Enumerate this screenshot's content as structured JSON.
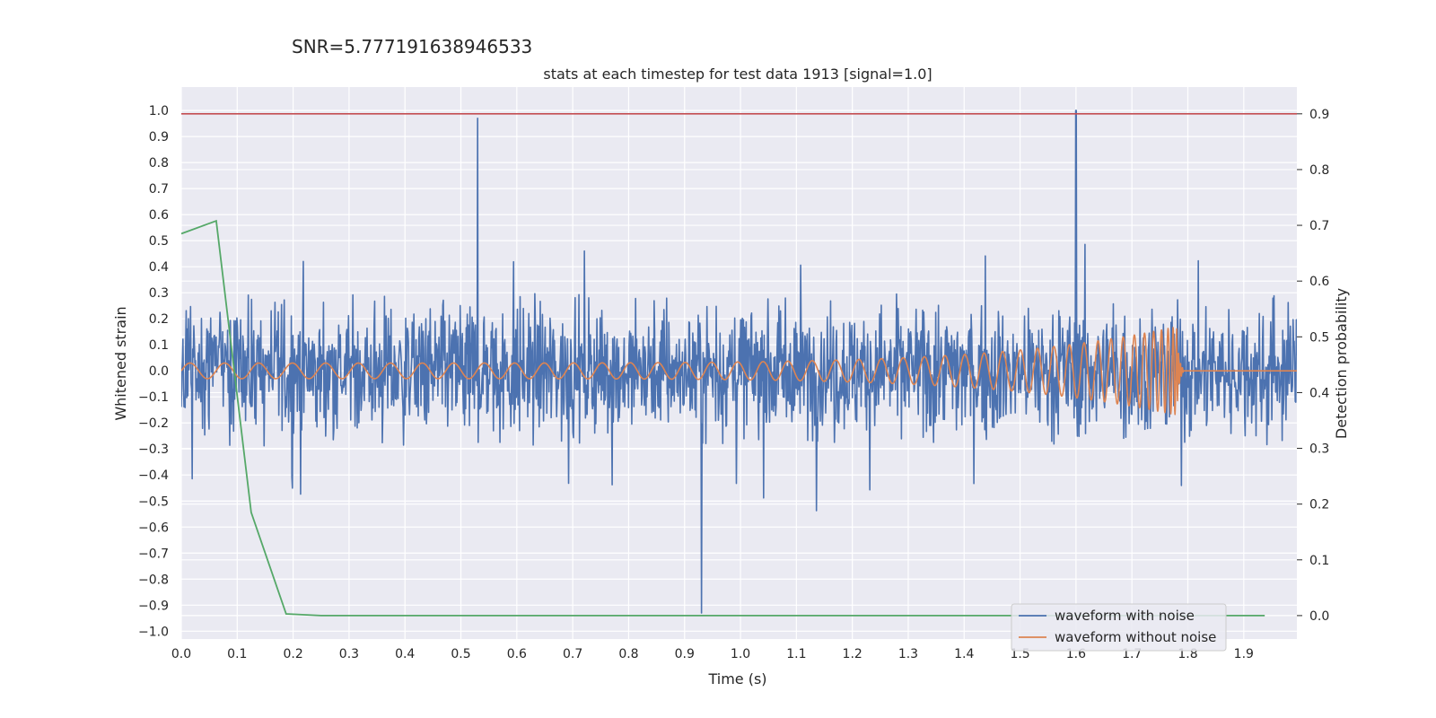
{
  "suptitle": "SNR=5.777191638946533",
  "chart_data": {
    "type": "line",
    "title": "stats at each timestep for test data 1913 [signal=1.0]",
    "xlabel": "Time (s)",
    "ylabel": "Whitened strain",
    "y2label": "Detection probability",
    "xlim": [
      0.0,
      1.995
    ],
    "ylim": [
      -1.03,
      1.09
    ],
    "y2lim": [
      -0.042,
      0.948
    ],
    "xticks": [
      "0.0",
      "0.1",
      "0.2",
      "0.3",
      "0.4",
      "0.5",
      "0.6",
      "0.7",
      "0.8",
      "0.9",
      "1.0",
      "1.1",
      "1.2",
      "1.3",
      "1.4",
      "1.5",
      "1.6",
      "1.7",
      "1.8",
      "1.9"
    ],
    "yticks": [
      "1.0",
      "0.9",
      "0.8",
      "0.7",
      "0.6",
      "0.5",
      "0.4",
      "0.3",
      "0.2",
      "0.1",
      "0.0",
      "−0.1",
      "−0.2",
      "−0.3",
      "−0.4",
      "−0.5",
      "−0.6",
      "−0.7",
      "−0.8",
      "−0.9",
      "−1.0"
    ],
    "y2ticks": [
      "0.9",
      "0.8",
      "0.7",
      "0.6",
      "0.5",
      "0.4",
      "0.3",
      "0.2",
      "0.1",
      "0.0"
    ],
    "grid": true,
    "legend_position": "lower-right",
    "series": [
      {
        "name": "waveform with noise",
        "color": "#4c72b0",
        "axis": "left",
        "kind": "noise",
        "notes_visible_peaks": [
          {
            "x": 0.53,
            "y": 0.97
          },
          {
            "x": 1.6,
            "y": 1.0
          },
          {
            "x": 0.93,
            "y": -0.93
          }
        ]
      },
      {
        "name": "waveform without noise",
        "color": "#dd8452",
        "axis": "left",
        "kind": "chirp",
        "merger_time": 1.78,
        "start_amplitude": 0.03,
        "peak_amplitude": 0.17
      },
      {
        "name": "",
        "color": "#55a868",
        "axis": "right",
        "x": [
          0.0,
          0.0625,
          0.125,
          0.1875,
          0.25,
          0.3125,
          1.9375
        ],
        "y": [
          0.685,
          0.708,
          0.185,
          0.003,
          0.0,
          0.0,
          0.0
        ]
      }
    ],
    "threshold_line": {
      "value": 0.9,
      "axis": "right",
      "color": "#c44e52"
    }
  }
}
